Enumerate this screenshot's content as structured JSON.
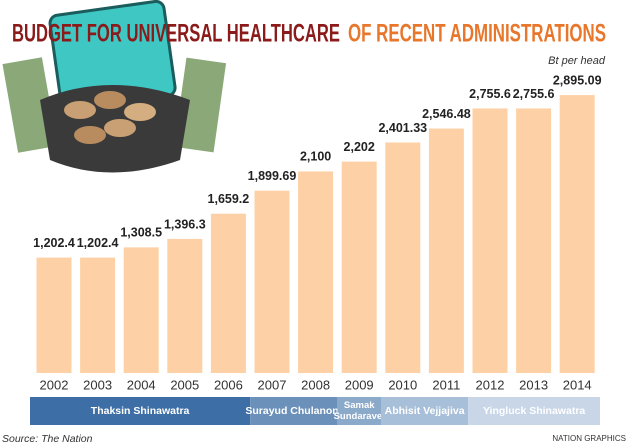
{
  "chart_data": {
    "type": "bar",
    "title": "BUDGET FOR UNIVERSAL HEALTHCARE",
    "title_2": "OF RECENT ADMINISTRATIONS",
    "subtitle": "Bt per head",
    "categories": [
      "2002",
      "2003",
      "2004",
      "2005",
      "2006",
      "2007",
      "2008",
      "2009",
      "2010",
      "2011",
      "2012",
      "2013",
      "2014"
    ],
    "values": [
      1202.4,
      1202.4,
      1308.5,
      1396.3,
      1659.2,
      1899.69,
      2100,
      2202,
      2401.33,
      2546.48,
      2755.6,
      2755.6,
      2895.09
    ],
    "value_labels": [
      "1,202.4",
      "1,202.4",
      "1,308.5",
      "1,396.3",
      "1,659.2",
      "1,899.69",
      "2,100",
      "2,202",
      "2,401.33",
      "2,546.48",
      "2,755.6",
      "2,755.6",
      "2,895.09"
    ],
    "color": "#fdd1a5",
    "administrations": [
      "Thaksin Shinawatra",
      "Surayud Chulanont",
      "Samak Sundaravej",
      "Abhisit Vejjajiva",
      "Yingluck Shinawatra"
    ],
    "source": "Source: The Nation",
    "credit": "NATION GRAPHICS"
  }
}
